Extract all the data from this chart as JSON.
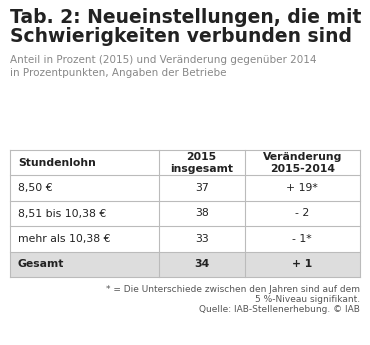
{
  "title_line1": "Tab. 2: Neueinstellungen, die mit",
  "title_line2": "Schwierigkeiten verbunden sind",
  "subtitle": "Anteil in Prozent (2015) und Veränderung gegenüber 2014\nin Prozentpunkten, Angaben der Betriebe",
  "col_headers": [
    "Stundenlohn",
    "2015\ninsgesamt",
    "Veränderung\n2015-2014"
  ],
  "rows": [
    [
      "8,50 €",
      "37",
      "+ 19*"
    ],
    [
      "8,51 bis 10,38 €",
      "38",
      "- 2"
    ],
    [
      "mehr als 10,38 €",
      "33",
      "- 1*"
    ],
    [
      "Gesamt",
      "34",
      "+ 1"
    ]
  ],
  "gesamt_row_index": 3,
  "footnote_line1": "* = Die Unterschiede zwischen den Jahren sind auf dem",
  "footnote_line2": "5 %-Niveau signifikant.",
  "footnote_line3": "Quelle: IAB-Stellenerhebung. © IAB",
  "bg_color": "#ffffff",
  "header_bg": "#ffffff",
  "row_bg": "#ffffff",
  "gesamt_bg": "#dddddd",
  "border_color": "#bbbbbb",
  "title_color": "#222222",
  "subtitle_color": "#888888",
  "text_color": "#222222",
  "footnote_color": "#555555",
  "col_splits": [
    0.425,
    0.67
  ],
  "title_fontsize": 13.5,
  "subtitle_fontsize": 7.5,
  "table_fontsize": 7.8,
  "footnote_fontsize": 6.5
}
